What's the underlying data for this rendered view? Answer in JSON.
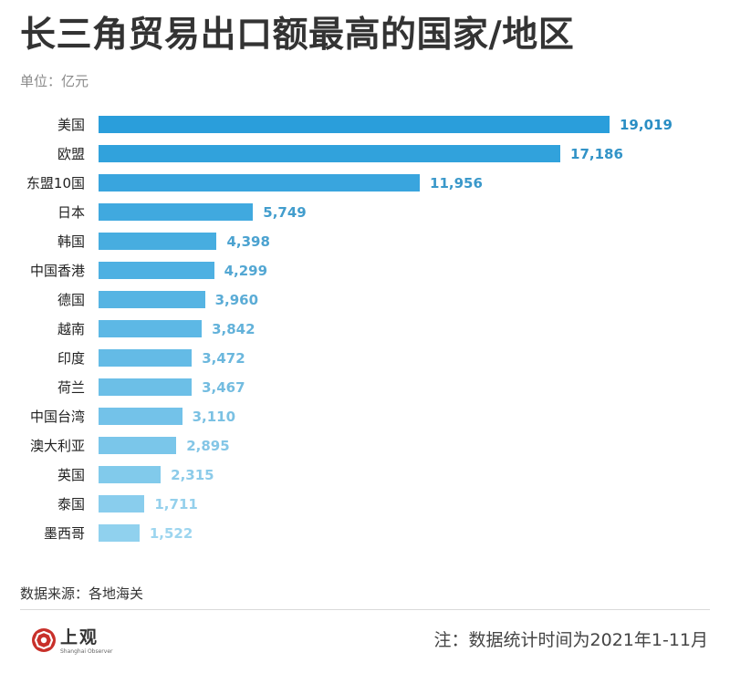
{
  "chart_data": {
    "type": "bar",
    "orientation": "horizontal",
    "title": "长三角贸易出口额最高的国家/地区",
    "unit_label": "单位：亿元",
    "xlabel": "",
    "ylabel": "",
    "categories": [
      "美国",
      "欧盟",
      "东盟10国",
      "日本",
      "韩国",
      "中国香港",
      "德国",
      "越南",
      "印度",
      "荷兰",
      "中国台湾",
      "澳大利亚",
      "英国",
      "泰国",
      "墨西哥"
    ],
    "values": [
      19019,
      17186,
      11956,
      5749,
      4398,
      4299,
      3960,
      3842,
      3472,
      3467,
      3110,
      2895,
      2315,
      1711,
      1522
    ],
    "xlim": [
      0,
      19019
    ],
    "grid": false,
    "legend": "none"
  },
  "colors": {
    "bar_start": "#2a9edb",
    "bar_end": "#90d1ee",
    "value_start": "#2a8ec4",
    "value_end": "#9cd5ef",
    "logo_red": "#c8302a"
  },
  "footer": {
    "source": "数据来源：各地海关",
    "note": "注：数据统计时间为2021年1-11月"
  },
  "brand": {
    "name": "上观",
    "subtitle": "Shanghai Observer",
    "logo_icon": "shanghai-observer-logo-icon"
  }
}
